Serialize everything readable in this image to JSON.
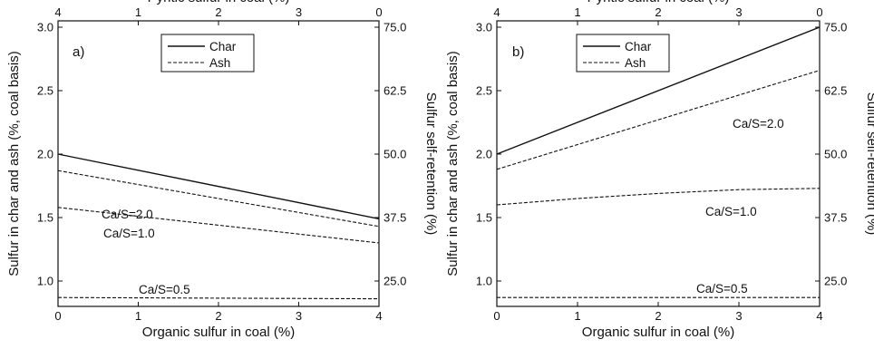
{
  "chart_data": [
    {
      "type": "line",
      "panel_label": "a)",
      "xlabel": "Organic sulfur in coal (%)",
      "x_top_label": "Pyritic sulfur in coal (%)",
      "ylabel": "Sulfur in char and ash (%, coal basis)",
      "y_right_label": "Sulfur self-retention (%)",
      "xlim": [
        0,
        4
      ],
      "ylim": [
        0.8,
        3.05
      ],
      "x_ticks": [
        "0",
        "1",
        "2",
        "3",
        "4"
      ],
      "x_top_ticks": [
        "4",
        "1",
        "2",
        "3",
        "0"
      ],
      "y_ticks": [
        "1.0",
        "1.5",
        "2.0",
        "2.5",
        "3.0"
      ],
      "y_right_ticks": [
        "25.0",
        "37.5",
        "50.0",
        "62.5",
        "75.0"
      ],
      "legend": [
        "Char",
        "Ash"
      ],
      "legend_position": "top-center",
      "grid": false,
      "series": [
        {
          "name": "Char",
          "style": "solid",
          "x": [
            0,
            4
          ],
          "y": [
            2.0,
            1.49
          ]
        },
        {
          "name": "Ash",
          "label": "Ca/S=2.0",
          "style": "dashed",
          "x": [
            0,
            4
          ],
          "y": [
            1.87,
            1.43
          ]
        },
        {
          "name": "Ash",
          "label": "Ca/S=1.0",
          "style": "dashed",
          "x": [
            0,
            4
          ],
          "y": [
            1.58,
            1.3
          ]
        },
        {
          "name": "Ash",
          "label": "Ca/S=0.5",
          "style": "dashed",
          "x": [
            0,
            4
          ],
          "y": [
            0.87,
            0.86
          ]
        }
      ],
      "annotations": [
        "Ca/S=2.0",
        "Ca/S=1.0",
        "Ca/S=0.5"
      ]
    },
    {
      "type": "line",
      "panel_label": "b)",
      "xlabel": "Organic sulfur in coal (%)",
      "x_top_label": "Pyritic sulfur in coal (%)",
      "ylabel": "Sulfur in char and ash (%, coal basis)",
      "y_right_label": "Sulfur self-retention (%)",
      "xlim": [
        0,
        4
      ],
      "ylim": [
        0.8,
        3.05
      ],
      "x_ticks": [
        "0",
        "1",
        "2",
        "3",
        "4"
      ],
      "x_top_ticks": [
        "4",
        "1",
        "2",
        "3",
        "0"
      ],
      "y_ticks": [
        "1.0",
        "1.5",
        "2.0",
        "2.5",
        "3.0"
      ],
      "y_right_ticks": [
        "25.0",
        "37.5",
        "50.0",
        "62.5",
        "75.0"
      ],
      "legend": [
        "Char",
        "Ash"
      ],
      "legend_position": "top-left",
      "grid": false,
      "series": [
        {
          "name": "Char",
          "style": "solid",
          "x": [
            0,
            4
          ],
          "y": [
            2.0,
            3.0
          ]
        },
        {
          "name": "Ash",
          "label": "Ca/S=2.0",
          "style": "dashed",
          "x": [
            0,
            4
          ],
          "y": [
            1.88,
            2.66
          ]
        },
        {
          "name": "Ash",
          "label": "Ca/S=1.0",
          "style": "dashed",
          "x": [
            0,
            1,
            2,
            3,
            4
          ],
          "y": [
            1.6,
            1.65,
            1.69,
            1.72,
            1.73
          ]
        },
        {
          "name": "Ash",
          "label": "Ca/S=0.5",
          "style": "dashed",
          "x": [
            0,
            4
          ],
          "y": [
            0.87,
            0.87
          ]
        }
      ],
      "annotations": [
        "Ca/S=2.0",
        "Ca/S=1.0",
        "Ca/S=0.5"
      ]
    }
  ]
}
